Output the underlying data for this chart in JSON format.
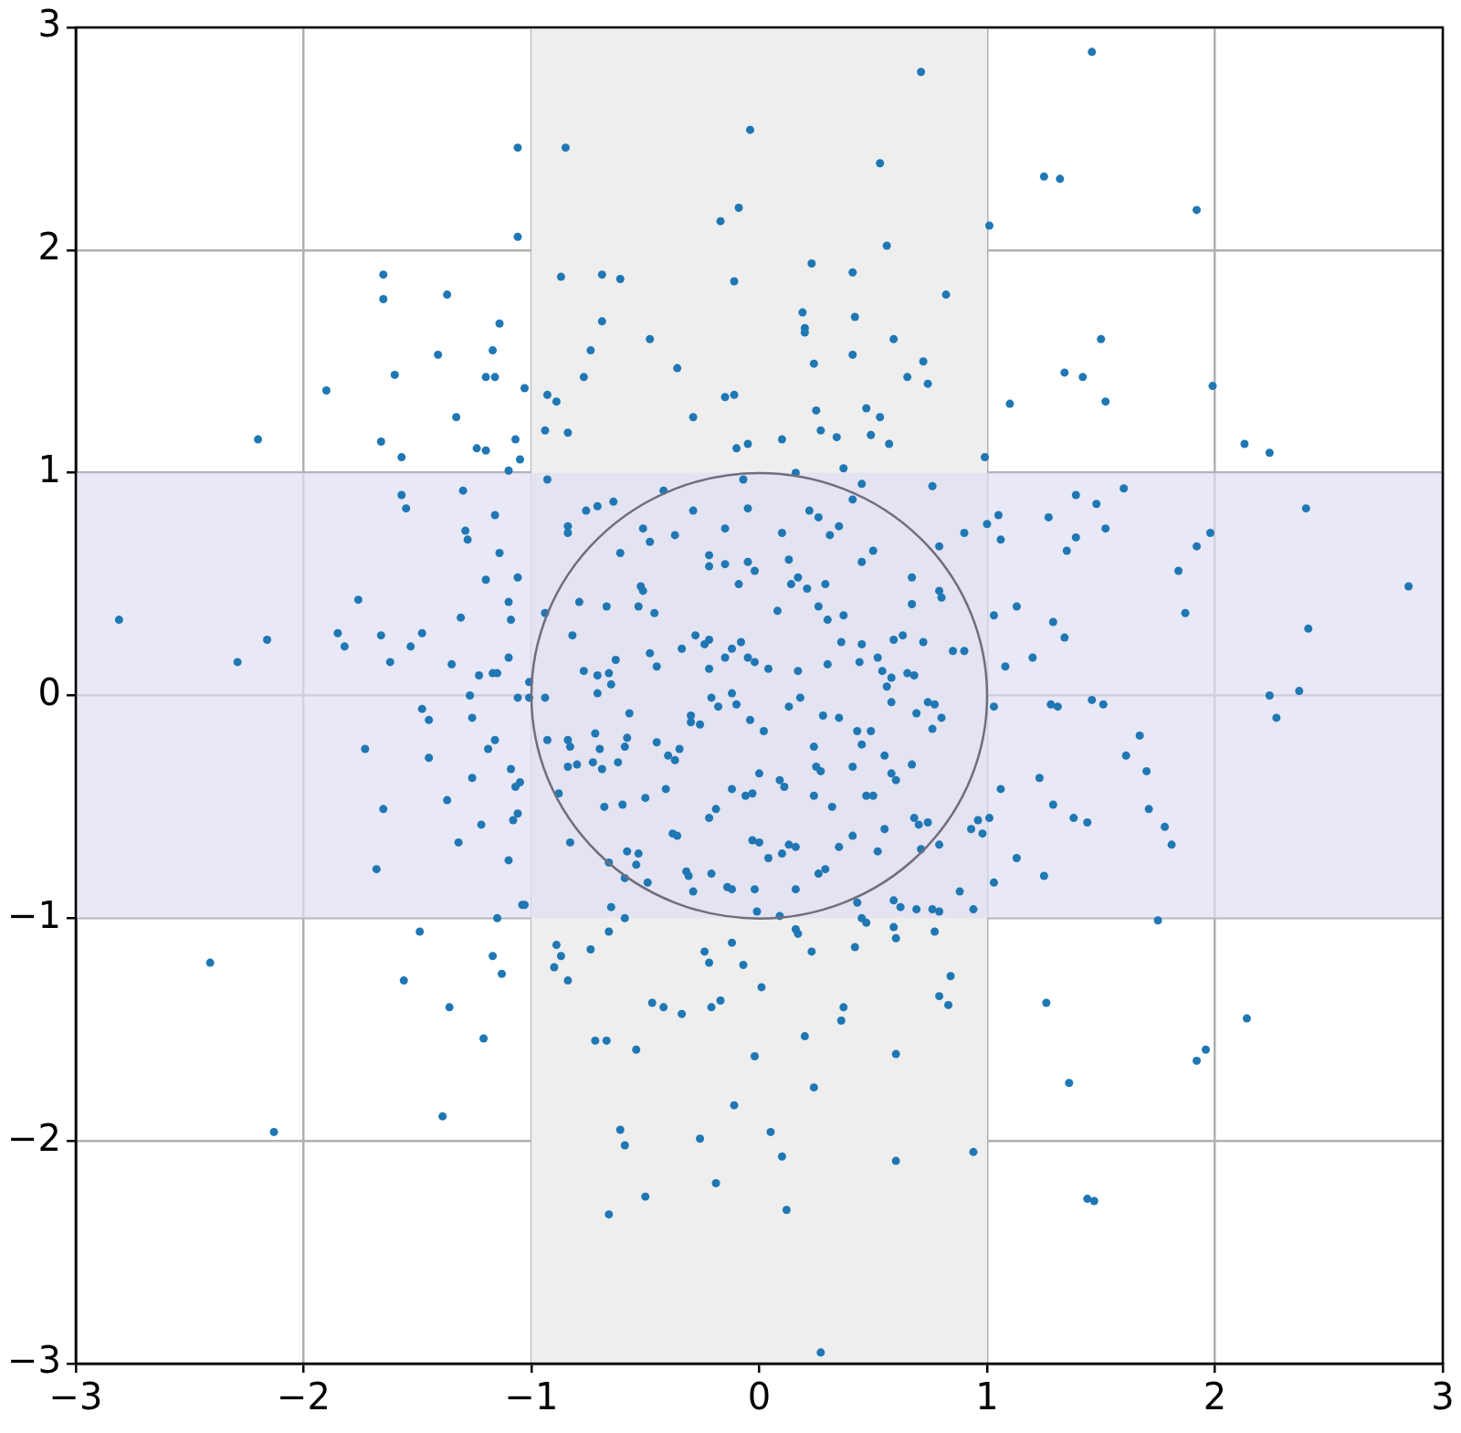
{
  "chart_data": {
    "type": "scatter",
    "xlim": [
      -3,
      3
    ],
    "ylim": [
      -3,
      3
    ],
    "xticks": [
      {
        "value": -3,
        "label": "−3"
      },
      {
        "value": -2,
        "label": "−2"
      },
      {
        "value": -1,
        "label": "−1"
      },
      0,
      1,
      2,
      3
    ],
    "yticks": [
      {
        "value": -3,
        "label": "−3"
      },
      {
        "value": -2,
        "label": "−2"
      },
      {
        "value": -1,
        "label": "−1"
      },
      0,
      1,
      2,
      3
    ],
    "grid": true,
    "legend": false,
    "marker": "circle",
    "bands": [
      {
        "axis": "x",
        "from": -1,
        "to": 1,
        "color": "#eeeeee"
      },
      {
        "axis": "y",
        "from": -1,
        "to": 1,
        "color": "#dedef2"
      }
    ],
    "series": [
      {
        "color": "#1f77b4",
        "x": [
          1.46,
          0.71,
          -0.04,
          -1.06,
          -0.85,
          0.53,
          1.25,
          1.32,
          -0.09,
          1.92,
          -0.17,
          1.01,
          -1.06,
          0.56,
          0.23,
          -1.65,
          -0.87,
          -0.69,
          -0.61,
          0.41,
          -0.11,
          0.82,
          -1.65,
          -1.37,
          -1.14,
          -0.69,
          0.19,
          0.42,
          0.2,
          0.2,
          -0.48,
          0.59,
          1.5,
          -1.17,
          -0.74,
          -1.41,
          0.41,
          0.24,
          0.72,
          -0.36,
          -1.16,
          -1.2,
          -0.77,
          0.65,
          0.74,
          1.34,
          1.42,
          -1.6,
          1.99,
          -1.9,
          -1.03,
          -0.93,
          -0.89,
          -0.15,
          -0.11,
          1.52,
          1.1,
          0.25,
          0.47,
          0.53,
          -0.29,
          -1.33,
          -0.94,
          -0.84,
          0.27,
          0.34,
          0.1,
          0.49,
          0.57,
          -2.2,
          -1.66,
          -1.07,
          -1.24,
          -1.2,
          -0.1,
          -0.05,
          2.13,
          2.24,
          -1.57,
          -1.05,
          0.99,
          -1.1,
          0.37,
          0.16,
          -2.81,
          -2.16,
          -2.29,
          -1.85,
          -1.82,
          -1.76,
          -1.66,
          -1.62,
          -1.57,
          -1.55,
          -1.53,
          -1.48,
          -1.35,
          -1.31,
          -1.3,
          -1.29,
          -1.28,
          -1.16,
          -1.14,
          -1.2,
          -1.06,
          -1.1,
          -1.09,
          -1.1,
          -1.17,
          -1.15,
          -1.23,
          -1.27,
          -1.01,
          -1.06,
          -1.01,
          -1.48,
          -1.45,
          -1.26,
          -1.16,
          -1.19,
          -1.73,
          -1.45,
          -1.09,
          -1.05,
          -1.07,
          -1.26,
          -1.37,
          -1.65,
          -1.06,
          -1.08,
          -1.22,
          -1.32,
          -1.1,
          -1.68,
          -1.04,
          -1.03,
          2.85,
          2.4,
          2.41,
          2.24,
          2.37,
          2.27,
          1.98,
          1.92,
          1.84,
          1.87,
          1.6,
          1.48,
          1.52,
          1.39,
          1.39,
          1.35,
          1.27,
          1.29,
          1.34,
          1.13,
          1.05,
          1.06,
          1.0,
          1.03,
          1.08,
          1.2,
          1.28,
          1.31,
          1.46,
          1.51,
          1.67,
          1.61,
          1.7,
          1.23,
          1.29,
          1.71,
          1.06,
          1.78,
          1.81,
          1.38,
          1.44,
          1.13,
          1.25,
          1.03,
          1.01,
          0.96,
          0.98,
          0.93,
          0.94,
          0.88,
          1.03,
          -0.93,
          -0.84,
          -0.84,
          -0.76,
          -0.71,
          -0.64,
          -0.42,
          -0.29,
          -0.07,
          -0.05,
          0.22,
          0.26,
          0.41,
          0.45,
          0.76,
          0.9,
          0.79,
          0.5,
          0.45,
          0.35,
          0.31,
          0.1,
          -0.15,
          -0.51,
          -0.48,
          -0.37,
          -0.61,
          -0.22,
          -0.22,
          -0.05,
          -0.15,
          -0.02,
          -0.09,
          0.13,
          0.17,
          0.21,
          0.29,
          0.14,
          -0.52,
          -0.51,
          -0.79,
          -0.67,
          -0.53,
          -0.46,
          -0.94,
          0.26,
          0.3,
          0.37,
          0.08,
          0.67,
          0.67,
          0.79,
          0.8,
          0.85,
          0.9,
          0.63,
          0.59,
          0.72,
          0.52,
          0.44,
          0.36,
          0.45,
          -0.28,
          -0.22,
          -0.24,
          -0.48,
          -0.45,
          -0.34,
          -0.22,
          -0.15,
          -0.12,
          -0.08,
          -0.05,
          -0.02,
          0.04,
          0.17,
          0.3,
          -0.77,
          -0.71,
          -0.66,
          -0.63,
          -0.94,
          -0.93,
          -0.84,
          -0.83,
          -0.8,
          -0.84,
          -0.72,
          -0.7,
          -0.73,
          -0.69,
          -0.62,
          -0.59,
          -0.45,
          -0.35,
          -0.4,
          -0.37,
          -0.3,
          -0.26,
          -0.21,
          -0.18,
          -0.12,
          -0.1,
          -0.04,
          0.02,
          0.13,
          0.18,
          0.24,
          0.27,
          0.25,
          0.28,
          0.35,
          0.43,
          0.45,
          0.49,
          0.55,
          0.58,
          0.6,
          0.67,
          0.76,
          0.8,
          0.69,
          0.74,
          0.58,
          0.65,
          0.68,
          0.56,
          0.58,
          0.41,
          0.47,
          0.5,
          0.32,
          0.24,
          0.09,
          0.11,
          0.0,
          -0.06,
          -0.03,
          -0.12,
          -0.19,
          -0.22,
          -0.5,
          -0.41,
          -0.6,
          -0.68,
          -0.88,
          -0.83,
          -0.58,
          -0.53,
          -0.66,
          -0.54,
          -0.59,
          -0.49,
          -0.38,
          -0.36,
          -0.32,
          -0.31,
          -0.29,
          -0.21,
          -0.14,
          -0.12,
          -0.02,
          -0.03,
          0.0,
          0.04,
          0.1,
          0.13,
          0.16,
          0.16,
          0.26,
          0.29,
          0.35,
          0.41,
          0.52,
          0.55,
          0.68,
          0.7,
          0.74,
          0.71,
          0.79,
          0.59,
          0.62,
          0.69,
          0.76,
          0.79,
          0.43,
          -0.65,
          0.09,
          -0.01,
          -0.57,
          -0.65,
          -0.71,
          -0.58,
          -0.82,
          -0.3,
          0.77,
          0.54,
          -0.66,
          -0.59,
          0.01,
          0.16,
          0.17,
          0.47,
          0.45,
          0.59,
          0.6,
          0.77,
          0.42,
          0.23,
          0.84,
          0.79,
          0.83,
          0.37,
          0.36,
          0.6,
          0.2,
          0.24,
          -0.02,
          -0.11,
          -0.07,
          -0.12,
          -0.24,
          -0.22,
          -0.21,
          -0.17,
          -0.34,
          -0.42,
          -0.47,
          -0.54,
          -0.74,
          -0.89,
          -0.87,
          -0.84,
          -0.9,
          -0.72,
          -0.67,
          -1.15,
          -1.49,
          -1.17,
          -1.13,
          -1.56,
          -1.36,
          -1.21,
          -2.41,
          -1.39,
          -2.13,
          -0.61,
          -0.59,
          -0.26,
          0.05,
          0.1,
          0.6,
          0.94,
          -0.19,
          -0.5,
          -0.66,
          0.12,
          0.27,
          1.26,
          1.36,
          1.75,
          2.14,
          1.96,
          1.92,
          1.44,
          1.47
        ],
        "values": [
          2.89,
          2.8,
          2.54,
          2.46,
          2.46,
          2.39,
          2.33,
          2.32,
          2.19,
          2.18,
          2.13,
          2.11,
          2.06,
          2.02,
          1.94,
          1.89,
          1.88,
          1.89,
          1.87,
          1.9,
          1.86,
          1.8,
          1.78,
          1.8,
          1.67,
          1.68,
          1.72,
          1.7,
          1.65,
          1.63,
          1.6,
          1.6,
          1.6,
          1.55,
          1.55,
          1.53,
          1.53,
          1.49,
          1.5,
          1.47,
          1.43,
          1.43,
          1.43,
          1.43,
          1.4,
          1.45,
          1.43,
          1.44,
          1.39,
          1.37,
          1.38,
          1.35,
          1.32,
          1.34,
          1.35,
          1.32,
          1.31,
          1.28,
          1.29,
          1.25,
          1.25,
          1.25,
          1.19,
          1.18,
          1.19,
          1.16,
          1.15,
          1.17,
          1.13,
          1.15,
          1.14,
          1.15,
          1.11,
          1.1,
          1.11,
          1.13,
          1.13,
          1.09,
          1.07,
          1.06,
          1.07,
          1.01,
          1.02,
          1.0,
          0.34,
          0.25,
          0.15,
          0.28,
          0.22,
          0.43,
          0.27,
          0.15,
          0.9,
          0.84,
          0.22,
          0.28,
          0.14,
          0.35,
          0.92,
          0.74,
          0.7,
          0.81,
          0.64,
          0.52,
          0.53,
          0.42,
          0.34,
          0.17,
          0.1,
          0.1,
          0.09,
          0.0,
          0.06,
          -0.01,
          -0.01,
          -0.06,
          -0.11,
          -0.1,
          -0.2,
          -0.24,
          -0.24,
          -0.28,
          -0.33,
          -0.39,
          -0.41,
          -0.37,
          -0.47,
          -0.51,
          -0.53,
          -0.56,
          -0.58,
          -0.66,
          -0.74,
          -0.78,
          -0.94,
          -0.94,
          0.49,
          0.84,
          0.3,
          0.0,
          0.02,
          -0.1,
          0.73,
          0.67,
          0.56,
          0.37,
          0.93,
          0.86,
          0.75,
          0.9,
          0.71,
          0.65,
          0.8,
          0.33,
          0.26,
          0.4,
          0.81,
          0.7,
          0.77,
          0.36,
          0.13,
          0.17,
          -0.04,
          -0.05,
          -0.02,
          -0.04,
          -0.18,
          -0.27,
          -0.34,
          -0.37,
          -0.49,
          -0.51,
          -0.42,
          -0.59,
          -0.67,
          -0.55,
          -0.57,
          -0.73,
          -0.81,
          -0.84,
          -0.55,
          -0.56,
          -0.62,
          -0.6,
          -0.96,
          -0.88,
          -0.05,
          0.97,
          0.76,
          0.73,
          0.83,
          0.85,
          0.87,
          0.92,
          0.83,
          0.97,
          0.84,
          0.83,
          0.8,
          0.88,
          0.95,
          0.94,
          0.73,
          0.67,
          0.65,
          0.6,
          0.76,
          0.72,
          0.73,
          0.75,
          0.75,
          0.69,
          0.72,
          0.64,
          0.63,
          0.58,
          0.6,
          0.59,
          0.56,
          0.5,
          0.61,
          0.53,
          0.48,
          0.5,
          0.5,
          0.49,
          0.47,
          0.42,
          0.4,
          0.4,
          0.37,
          0.37,
          0.4,
          0.34,
          0.36,
          0.38,
          0.53,
          0.41,
          0.47,
          0.44,
          0.2,
          0.2,
          0.27,
          0.25,
          0.24,
          0.17,
          0.15,
          0.24,
          0.23,
          0.27,
          0.25,
          0.23,
          0.19,
          0.13,
          0.21,
          0.12,
          0.17,
          0.21,
          0.24,
          0.17,
          0.15,
          0.12,
          0.11,
          0.14,
          0.11,
          0.09,
          0.1,
          0.16,
          -0.01,
          -0.2,
          -0.2,
          -0.23,
          -0.31,
          -0.32,
          -0.17,
          -0.24,
          -0.3,
          -0.33,
          -0.3,
          -0.23,
          -0.21,
          -0.24,
          -0.27,
          -0.29,
          -0.12,
          -0.13,
          -0.01,
          -0.05,
          0.01,
          -0.04,
          -0.11,
          -0.16,
          -0.05,
          -0.01,
          -0.23,
          -0.34,
          -0.32,
          -0.09,
          -0.1,
          -0.16,
          -0.22,
          -0.16,
          -0.27,
          -0.35,
          -0.38,
          -0.31,
          -0.15,
          -0.1,
          -0.08,
          -0.03,
          -0.03,
          0.1,
          0.09,
          0.04,
          0.08,
          -0.32,
          -0.45,
          -0.45,
          -0.5,
          -0.45,
          -0.38,
          -0.41,
          -0.35,
          -0.45,
          -0.44,
          -0.42,
          -0.51,
          -0.55,
          -0.46,
          -0.42,
          -0.49,
          -0.5,
          -0.44,
          -0.66,
          -0.7,
          -0.71,
          -0.75,
          -0.76,
          -0.82,
          -0.84,
          -0.62,
          -0.63,
          -0.79,
          -0.81,
          -0.88,
          -0.8,
          -0.86,
          -0.87,
          -0.87,
          -0.65,
          -0.66,
          -0.73,
          -0.71,
          -0.67,
          -0.68,
          -0.87,
          -0.8,
          -0.78,
          -0.68,
          -0.63,
          -0.7,
          -0.6,
          -0.55,
          -0.58,
          -0.57,
          -0.69,
          -0.67,
          -0.92,
          -0.95,
          -0.96,
          -0.96,
          -0.97,
          -0.93,
          -0.95,
          -0.99,
          -0.97,
          -0.08,
          0.05,
          0.01,
          -0.19,
          0.27,
          -0.09,
          -0.04,
          0.11,
          -1.06,
          -1.0,
          -1.31,
          -1.05,
          -1.07,
          -1.02,
          -1.0,
          -1.04,
          -1.09,
          -1.06,
          -1.13,
          -1.15,
          -1.26,
          -1.35,
          -1.39,
          -1.4,
          -1.46,
          -1.61,
          -1.53,
          -1.76,
          -1.62,
          -1.84,
          -1.21,
          -1.11,
          -1.15,
          -1.2,
          -1.4,
          -1.37,
          -1.43,
          -1.4,
          -1.38,
          -1.59,
          -1.14,
          -1.12,
          -1.17,
          -1.28,
          -1.22,
          -1.55,
          -1.55,
          -1.0,
          -1.06,
          -1.17,
          -1.25,
          -1.28,
          -1.4,
          -1.54,
          -1.2,
          -1.89,
          -1.96,
          -1.95,
          -2.02,
          -1.99,
          -1.96,
          -2.07,
          -2.09,
          -2.05,
          -2.19,
          -2.25,
          -2.33,
          -2.31,
          -2.95,
          -1.38,
          -1.74,
          -1.01,
          -1.45,
          -1.59,
          -1.64,
          -2.26,
          -2.27
        ]
      }
    ]
  }
}
